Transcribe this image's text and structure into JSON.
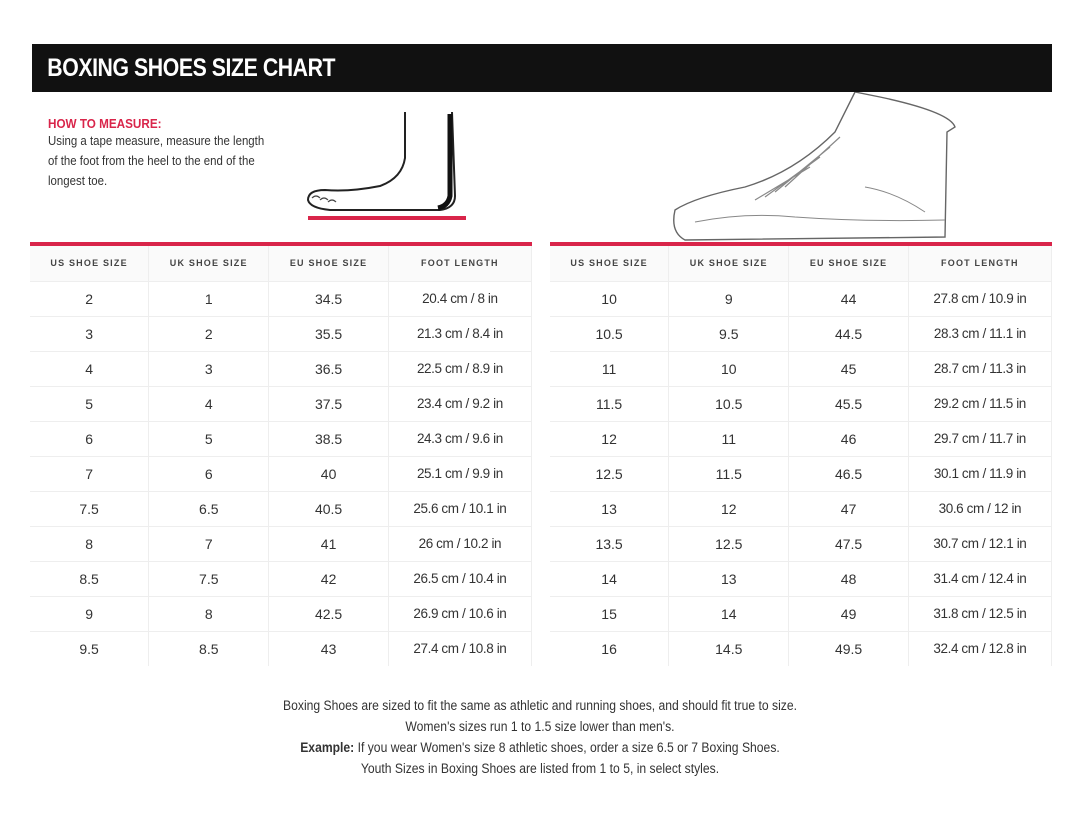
{
  "title": "BOXING SHOES SIZE CHART",
  "accent_color": "#d9254a",
  "how_to_measure": {
    "heading": "HOW TO MEASURE:",
    "text": "Using a tape measure, measure the length of the foot from the heel to the end of the longest toe."
  },
  "illustrations": [
    "foot-measure-icon",
    "boxing-boot-icon"
  ],
  "columns": [
    "US SHOE SIZE",
    "UK SHOE SIZE",
    "EU SHOE SIZE",
    "FOOT LENGTH"
  ],
  "left_rows": [
    [
      "2",
      "1",
      "34.5",
      "20.4 cm / 8 in"
    ],
    [
      "3",
      "2",
      "35.5",
      "21.3 cm / 8.4 in"
    ],
    [
      "4",
      "3",
      "36.5",
      "22.5 cm / 8.9 in"
    ],
    [
      "5",
      "4",
      "37.5",
      "23.4 cm / 9.2 in"
    ],
    [
      "6",
      "5",
      "38.5",
      "24.3 cm / 9.6 in"
    ],
    [
      "7",
      "6",
      "40",
      "25.1 cm / 9.9 in"
    ],
    [
      "7.5",
      "6.5",
      "40.5",
      "25.6 cm / 10.1 in"
    ],
    [
      "8",
      "7",
      "41",
      "26 cm / 10.2 in"
    ],
    [
      "8.5",
      "7.5",
      "42",
      "26.5 cm / 10.4 in"
    ],
    [
      "9",
      "8",
      "42.5",
      "26.9 cm / 10.6 in"
    ],
    [
      "9.5",
      "8.5",
      "43",
      "27.4 cm / 10.8 in"
    ]
  ],
  "right_rows": [
    [
      "10",
      "9",
      "44",
      "27.8 cm / 10.9 in"
    ],
    [
      "10.5",
      "9.5",
      "44.5",
      "28.3 cm / 11.1 in"
    ],
    [
      "11",
      "10",
      "45",
      "28.7 cm / 11.3 in"
    ],
    [
      "11.5",
      "10.5",
      "45.5",
      "29.2 cm / 11.5 in"
    ],
    [
      "12",
      "11",
      "46",
      "29.7 cm / 11.7 in"
    ],
    [
      "12.5",
      "11.5",
      "46.5",
      "30.1 cm / 11.9 in"
    ],
    [
      "13",
      "12",
      "47",
      "30.6 cm / 12 in"
    ],
    [
      "13.5",
      "12.5",
      "47.5",
      "30.7 cm / 12.1 in"
    ],
    [
      "14",
      "13",
      "48",
      "31.4 cm / 12.4 in"
    ],
    [
      "15",
      "14",
      "49",
      "31.8 cm / 12.5 in"
    ],
    [
      "16",
      "14.5",
      "49.5",
      "32.4 cm / 12.8 in"
    ]
  ],
  "notes": {
    "line1": "Boxing Shoes are sized to fit the same as athletic and running shoes, and should fit true to size.",
    "line2": "Women's sizes run 1 to 1.5 size lower than men's.",
    "example_label": "Example:",
    "line3": " If you wear Women's size 8 athletic shoes, order a size 6.5 or 7 Boxing Shoes.",
    "line4": "Youth Sizes in Boxing Shoes are listed from 1 to 5, in select styles."
  }
}
